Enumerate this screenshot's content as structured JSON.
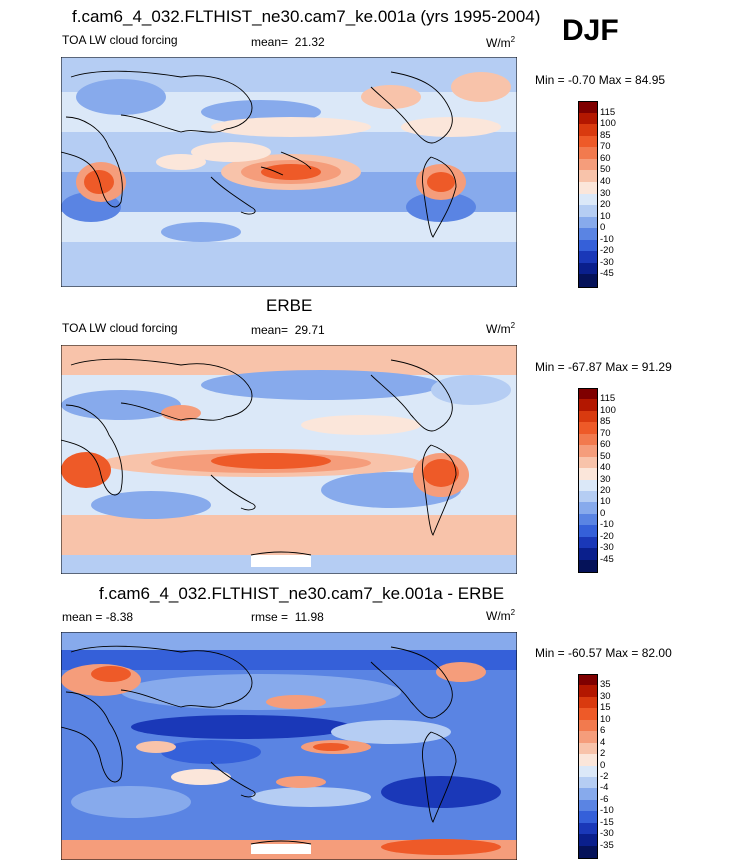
{
  "season": "DJF",
  "panels": [
    {
      "title": "f.cam6_4_032.FLTHIST_ne30.cam7_ke.001a (yrs 1995-2004)",
      "left_label": "TOA LW cloud forcing",
      "stat_label": "mean=",
      "stat_value": "21.32",
      "units": "W/m",
      "units_exp": "2",
      "minmax": "Min = -0.70 Max = 84.95",
      "levels": [
        "115",
        "100",
        "85",
        "70",
        "60",
        "50",
        "40",
        "30",
        "20",
        "10",
        "0",
        "-10",
        "-20",
        "-30",
        "-45"
      ],
      "colors": [
        "#7f0000",
        "#b31700",
        "#d93a0f",
        "#ee5a28",
        "#f27a4e",
        "#f59d7b",
        "#f8c3aa",
        "#fbe6da",
        "#dbe8f8",
        "#b5cdf3",
        "#87aaec",
        "#5a84e3",
        "#3560d9",
        "#1a38b8",
        "#0a1f8c",
        "#051259"
      ]
    },
    {
      "title": "ERBE",
      "left_label": "TOA LW cloud forcing",
      "stat_label": "mean=",
      "stat_value": "29.71",
      "units": "W/m",
      "units_exp": "2",
      "minmax": "Min = -67.87 Max = 91.29",
      "levels": [
        "115",
        "100",
        "85",
        "70",
        "60",
        "50",
        "40",
        "30",
        "20",
        "10",
        "0",
        "-10",
        "-20",
        "-30",
        "-45"
      ],
      "colors": [
        "#7f0000",
        "#b31700",
        "#d93a0f",
        "#ee5a28",
        "#f27a4e",
        "#f59d7b",
        "#f8c3aa",
        "#fbe6da",
        "#dbe8f8",
        "#b5cdf3",
        "#87aaec",
        "#5a84e3",
        "#3560d9",
        "#1a38b8",
        "#0a1f8c",
        "#051259"
      ]
    },
    {
      "title": "f.cam6_4_032.FLTHIST_ne30.cam7_ke.001a - ERBE",
      "left_label": "mean = -8.38",
      "stat_label": "rmse =",
      "stat_value": "11.98",
      "units": "W/m",
      "units_exp": "2",
      "minmax": "Min = -60.57 Max = 82.00",
      "levels": [
        "35",
        "30",
        "15",
        "10",
        "6",
        "4",
        "2",
        "0",
        "-2",
        "-4",
        "-6",
        "-10",
        "-15",
        "-30",
        "-35"
      ],
      "colors": [
        "#7f0000",
        "#b31700",
        "#d93a0f",
        "#ee5a28",
        "#f27a4e",
        "#f59d7b",
        "#f8c3aa",
        "#fbe6da",
        "#dbe8f8",
        "#b5cdf3",
        "#87aaec",
        "#5a84e3",
        "#3560d9",
        "#1a38b8",
        "#0a1f8c",
        "#051259"
      ]
    }
  ]
}
